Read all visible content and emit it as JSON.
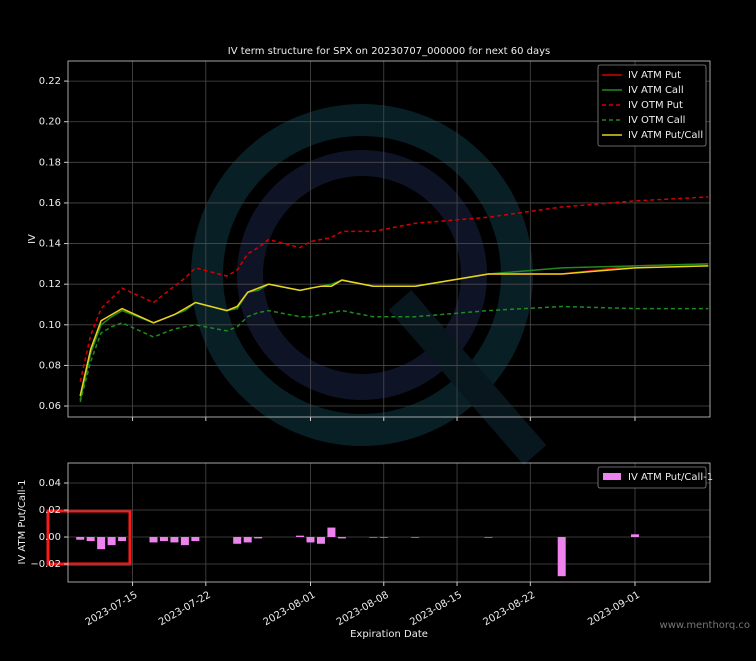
{
  "chart_data": [
    {
      "type": "line",
      "title": "IV term structure for SPX on 20230707_000000 for next 60 days",
      "ylabel": "IV",
      "x": [
        "2023-07-10",
        "2023-07-11",
        "2023-07-12",
        "2023-07-13",
        "2023-07-14",
        "2023-07-17",
        "2023-07-18",
        "2023-07-19",
        "2023-07-20",
        "2023-07-21",
        "2023-07-24",
        "2023-07-25",
        "2023-07-26",
        "2023-07-27",
        "2023-07-28",
        "2023-07-31",
        "2023-08-01",
        "2023-08-02",
        "2023-08-03",
        "2023-08-04",
        "2023-08-07",
        "2023-08-08",
        "2023-08-11",
        "2023-08-18",
        "2023-08-25",
        "2023-09-01",
        "2023-09-08"
      ],
      "series": [
        {
          "name": "IV ATM Put",
          "color": "#d40000",
          "linestyle": "solid",
          "values": [
            0.065,
            0.088,
            0.102,
            0.105,
            0.108,
            0.101,
            0.103,
            0.105,
            0.108,
            0.111,
            0.107,
            0.109,
            0.116,
            0.118,
            0.12,
            0.117,
            0.118,
            0.119,
            0.119,
            0.122,
            0.119,
            0.119,
            0.119,
            0.125,
            0.125,
            0.129,
            0.13
          ]
        },
        {
          "name": "IV ATM Call",
          "color": "#1f8a1f",
          "linestyle": "solid",
          "values": [
            0.063,
            0.086,
            0.1,
            0.104,
            0.107,
            0.101,
            0.103,
            0.105,
            0.107,
            0.111,
            0.107,
            0.108,
            0.116,
            0.117,
            0.12,
            0.117,
            0.118,
            0.119,
            0.12,
            0.122,
            0.119,
            0.119,
            0.119,
            0.125,
            0.128,
            0.129,
            0.13
          ]
        },
        {
          "name": "IV OTM Put",
          "color": "#d40000",
          "linestyle": "dashed",
          "values": [
            0.072,
            0.095,
            0.108,
            0.113,
            0.118,
            0.111,
            0.115,
            0.119,
            0.123,
            0.128,
            0.124,
            0.127,
            0.135,
            0.138,
            0.142,
            0.138,
            0.141,
            0.142,
            0.143,
            0.146,
            0.146,
            0.147,
            0.15,
            0.153,
            0.158,
            0.161,
            0.163
          ]
        },
        {
          "name": "IV OTM Call",
          "color": "#1f8a1f",
          "linestyle": "dashed",
          "values": [
            0.062,
            0.082,
            0.096,
            0.099,
            0.101,
            0.094,
            0.096,
            0.098,
            0.099,
            0.1,
            0.097,
            0.099,
            0.104,
            0.106,
            0.107,
            0.104,
            0.104,
            0.105,
            0.106,
            0.107,
            0.104,
            0.104,
            0.104,
            0.107,
            0.109,
            0.108,
            0.108
          ]
        },
        {
          "name": "IV ATM Put/Call",
          "color": "#e6d41e",
          "linestyle": "solid",
          "values": [
            0.065,
            0.088,
            0.102,
            0.105,
            0.108,
            0.101,
            0.103,
            0.105,
            0.108,
            0.111,
            0.107,
            0.109,
            0.116,
            0.118,
            0.12,
            0.117,
            0.118,
            0.119,
            0.119,
            0.122,
            0.119,
            0.119,
            0.119,
            0.125,
            0.125,
            0.128,
            0.129
          ]
        }
      ],
      "xlim": [
        "2023-07-08T20:00",
        "2023-09-08T04:00"
      ],
      "ylim": [
        0.0546,
        0.2299
      ],
      "yticks": [
        0.06,
        0.08,
        {
          "value": 0.1,
          "label": "0.10"
        },
        0.12,
        0.14,
        0.16,
        0.18,
        {
          "value": 0.2,
          "label": "0.20"
        },
        0.22
      ],
      "grid": true,
      "legend": "upper right"
    },
    {
      "type": "bar",
      "ylabel": "IV ATM Put/Call-1",
      "xlabel": "Expiration Date",
      "x": [
        "2023-07-10",
        "2023-07-11",
        "2023-07-12",
        "2023-07-13",
        "2023-07-14",
        "2023-07-17",
        "2023-07-18",
        "2023-07-19",
        "2023-07-20",
        "2023-07-21",
        "2023-07-24",
        "2023-07-25",
        "2023-07-26",
        "2023-07-27",
        "2023-07-28",
        "2023-07-31",
        "2023-08-01",
        "2023-08-02",
        "2023-08-03",
        "2023-08-04",
        "2023-08-07",
        "2023-08-08",
        "2023-08-11",
        "2023-08-18",
        "2023-08-25",
        "2023-09-01",
        "2023-09-08"
      ],
      "series": [
        {
          "name": "IV ATM Put/Call-1",
          "color": "#ee82ee",
          "values": [
            -0.002,
            -0.003,
            -0.009,
            -0.006,
            -0.003,
            -0.004,
            -0.003,
            -0.004,
            -0.006,
            -0.003,
            0,
            -0.005,
            -0.004,
            -0.001,
            0,
            0.001,
            -0.004,
            -0.005,
            0.007,
            -0.001,
            -0.0005,
            -0.0005,
            -0.0005,
            -0.0005,
            -0.029,
            0.002,
            0
          ]
        }
      ],
      "xlim": [
        "2023-07-08T20:00",
        "2023-09-08T04:00"
      ],
      "ylim": [
        -0.0333,
        0.0548
      ],
      "xticks": [
        {
          "value": "2023-07-15",
          "label": "2023-07-15"
        },
        {
          "value": "2023-07-22",
          "label": "2023-07-22"
        },
        {
          "value": "2023-08-01",
          "label": "2023-08-01"
        },
        {
          "value": "2023-08-08",
          "label": "2023-08-08"
        },
        {
          "value": "2023-08-15",
          "label": "2023-08-15"
        },
        {
          "value": "2023-08-22",
          "label": "2023-08-22"
        },
        {
          "value": "2023-09-01",
          "label": "2023-09-01"
        }
      ],
      "yticks": [
        {
          "value": -0.02,
          "label": "−0.02"
        },
        {
          "value": 0,
          "label": "0.00"
        },
        0.02,
        0.04
      ],
      "grid": true,
      "legend": "upper right"
    }
  ],
  "watermark": "www.menthorq.co"
}
